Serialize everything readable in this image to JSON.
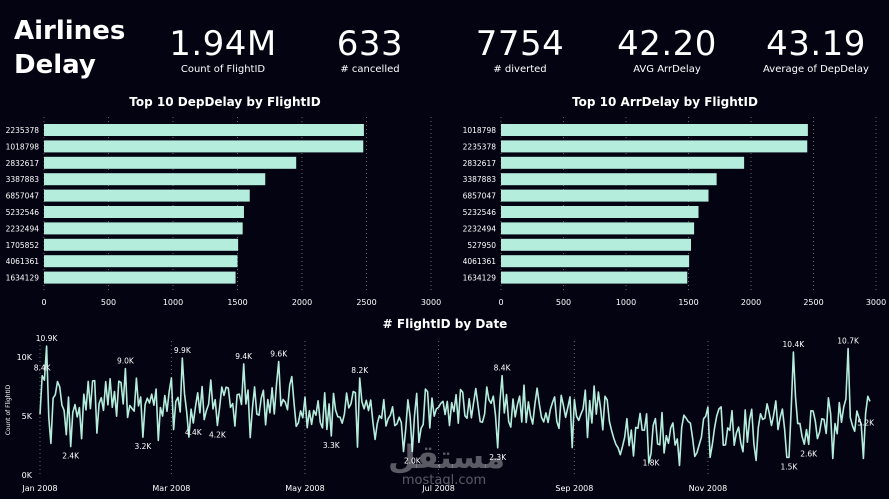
{
  "title_line1": "Airlines",
  "title_line2": "Delay",
  "kpis": [
    {
      "value": "1.94M",
      "label": "Count of FlightID"
    },
    {
      "value": "633",
      "label": "# cancelled"
    },
    {
      "value": "7754",
      "label": "# diverted"
    },
    {
      "value": "42.20",
      "label": "AVG ArrDelay"
    },
    {
      "value": "43.19",
      "label": "Average of DepDelay"
    }
  ],
  "colors": {
    "background": "#030312",
    "bar": "#b5eddd",
    "line": "#b5eddd"
  },
  "chart_data": [
    {
      "type": "bar",
      "title": "Top 10 DepDelay by FlightID",
      "categories": [
        "2235378",
        "1018798",
        "2832617",
        "3387883",
        "6857047",
        "5232546",
        "2232494",
        "1705852",
        "4061361",
        "1634129"
      ],
      "values": [
        2480,
        2475,
        1955,
        1715,
        1595,
        1550,
        1540,
        1505,
        1500,
        1485
      ],
      "xticks": [
        "0",
        "500",
        "1000",
        "1500",
        "2000",
        "2500",
        "3000"
      ],
      "xlim": [
        0,
        3000
      ]
    },
    {
      "type": "bar",
      "title": "Top 10 ArrDelay by FlightID",
      "categories": [
        "1018798",
        "2235378",
        "2832617",
        "3387883",
        "6857047",
        "5232546",
        "2232494",
        "527950",
        "4061361",
        "1634129"
      ],
      "values": [
        2455,
        2450,
        1945,
        1725,
        1660,
        1580,
        1545,
        1520,
        1505,
        1490
      ],
      "xticks": [
        "0",
        "500",
        "1000",
        "1500",
        "2000",
        "2500",
        "3000"
      ],
      "xlim": [
        0,
        3000
      ]
    },
    {
      "type": "line",
      "title": "# FlightID by Date",
      "ylabel": "Count of FlightID",
      "ylim": [
        0,
        11000
      ],
      "yticks": [
        "0K",
        "5K",
        "10K"
      ],
      "xticks": [
        "Jan 2008",
        "Mar 2008",
        "May 2008",
        "Jul 2008",
        "Sep 2008",
        "Nov 2008"
      ],
      "annotations": [
        {
          "text": "10.9K",
          "i": 3,
          "v": 10900
        },
        {
          "text": "8.4K",
          "i": 1,
          "v": 8400
        },
        {
          "text": "2.4K",
          "i": 14,
          "v": 2400
        },
        {
          "text": "9.0K",
          "i": 39,
          "v": 9000
        },
        {
          "text": "3.2K",
          "i": 47,
          "v": 3200
        },
        {
          "text": "9.9K",
          "i": 65,
          "v": 9900
        },
        {
          "text": "4.4K",
          "i": 70,
          "v": 4400
        },
        {
          "text": "4.2K",
          "i": 81,
          "v": 4200
        },
        {
          "text": "9.4K",
          "i": 93,
          "v": 9400
        },
        {
          "text": "9.6K",
          "i": 109,
          "v": 9600
        },
        {
          "text": "3.3K",
          "i": 133,
          "v": 3300
        },
        {
          "text": "8.2K",
          "i": 146,
          "v": 8200
        },
        {
          "text": "2.0K",
          "i": 170,
          "v": 2000
        },
        {
          "text": "2.3K",
          "i": 209,
          "v": 2300
        },
        {
          "text": "8.4K",
          "i": 211,
          "v": 8400
        },
        {
          "text": "1.8K",
          "i": 279,
          "v": 1800
        },
        {
          "text": "10.4K",
          "i": 344,
          "v": 10400
        },
        {
          "text": "1.5K",
          "i": 342,
          "v": 1500
        },
        {
          "text": "2.6K",
          "i": 351,
          "v": 2600
        },
        {
          "text": "10.7K",
          "i": 369,
          "v": 10700
        },
        {
          "text": "5.2K",
          "i": 377,
          "v": 5200
        }
      ]
    }
  ],
  "watermark": {
    "arabic": "مستقل",
    "latin": "mostaql.com"
  }
}
